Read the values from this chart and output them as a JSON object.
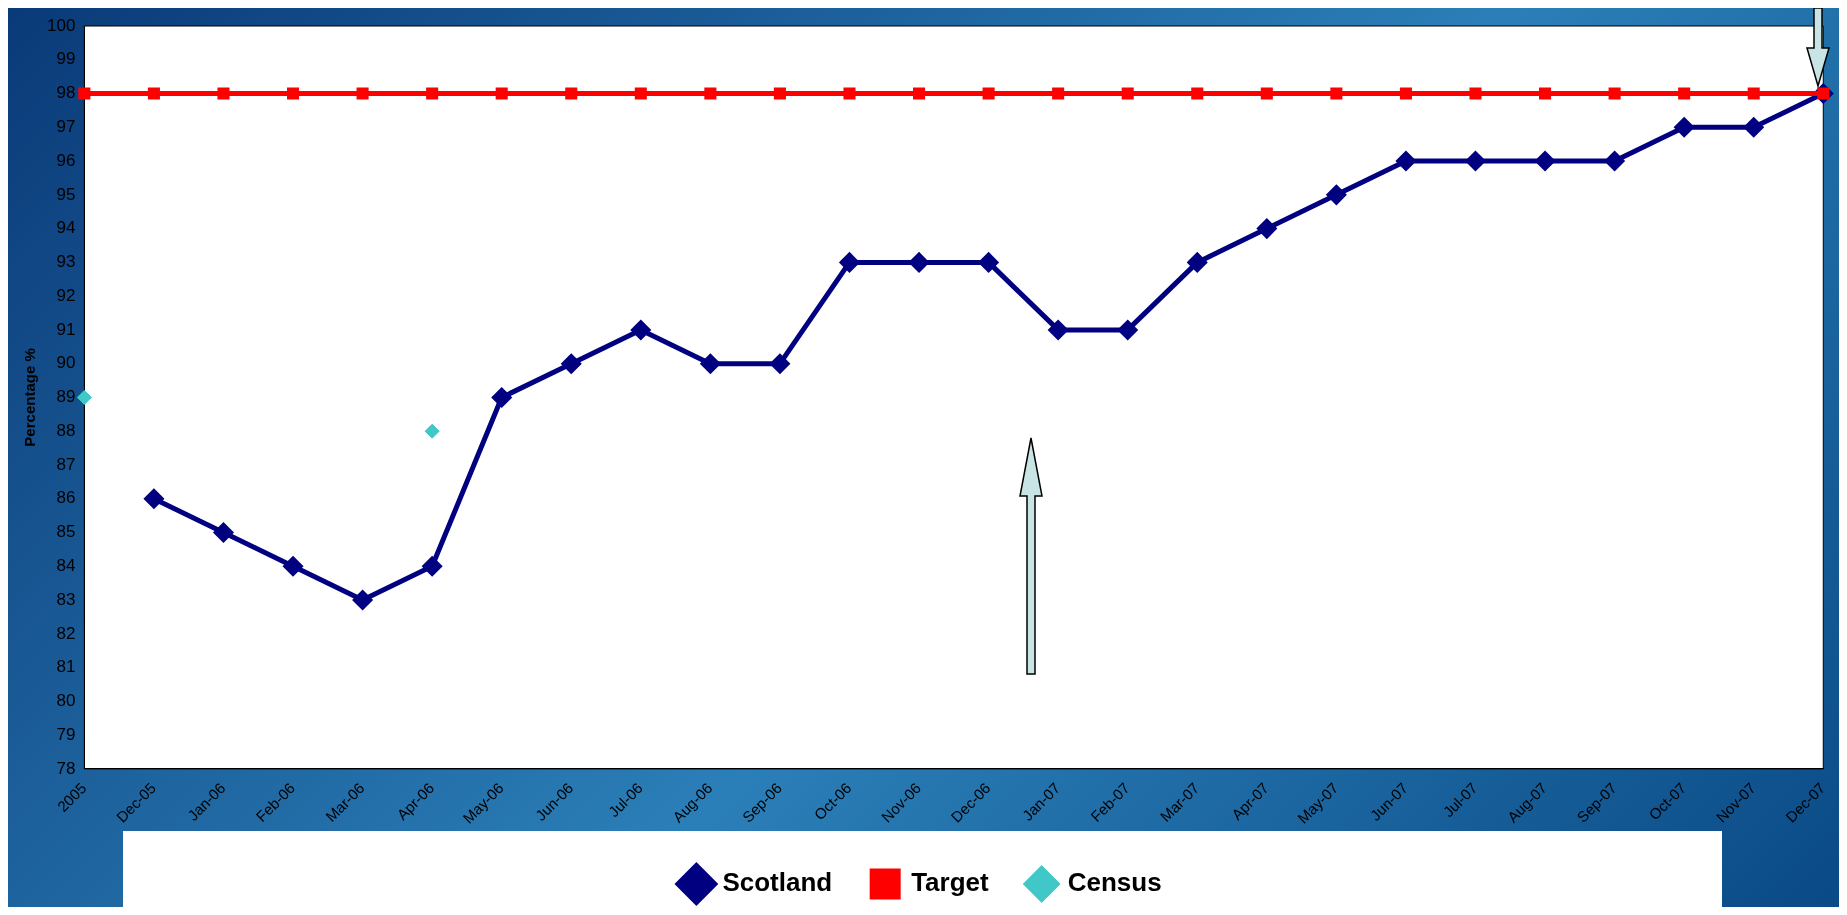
{
  "chart_data": {
    "type": "line",
    "ylabel": "Percentage %",
    "categories": [
      "2005",
      "Dec-05",
      "Jan-06",
      "Feb-06",
      "Mar-06",
      "Apr-06",
      "May-06",
      "Jun-06",
      "Jul-06",
      "Aug-06",
      "Sep-06",
      "Oct-06",
      "Nov-06",
      "Dec-06",
      "Jan-07",
      "Feb-07",
      "Mar-07",
      "Apr-07",
      "May-07",
      "Jun-07",
      "Jul-07",
      "Aug-07",
      "Sep-07",
      "Oct-07",
      "Nov-07",
      "Dec-07"
    ],
    "series": [
      {
        "name": "Scotland",
        "type": "line",
        "color": "#000080",
        "marker": "diamond",
        "values": [
          null,
          86,
          85,
          84,
          83,
          84,
          89,
          90,
          91,
          90,
          90,
          93,
          93,
          93,
          91,
          91,
          93,
          94,
          95,
          96,
          96,
          96,
          96,
          97,
          97,
          98
        ]
      },
      {
        "name": "Target",
        "type": "line",
        "color": "#ff0000",
        "marker": "square",
        "values": [
          98,
          98,
          98,
          98,
          98,
          98,
          98,
          98,
          98,
          98,
          98,
          98,
          98,
          98,
          98,
          98,
          98,
          98,
          98,
          98,
          98,
          98,
          98,
          98,
          98,
          98
        ]
      },
      {
        "name": "Census",
        "type": "scatter",
        "color": "#40c8c8",
        "marker": "diamond",
        "values": [
          89,
          null,
          null,
          null,
          null,
          88,
          null,
          null,
          null,
          null,
          null,
          null,
          null,
          null,
          null,
          null,
          null,
          null,
          null,
          null,
          null,
          null,
          null,
          null,
          null,
          null
        ]
      }
    ],
    "ylim": [
      78,
      100
    ],
    "yticks": [
      78,
      79,
      80,
      81,
      82,
      83,
      84,
      85,
      86,
      87,
      88,
      89,
      90,
      91,
      92,
      93,
      94,
      95,
      96,
      97,
      98,
      99,
      100
    ],
    "grid": false,
    "legend": "bottom"
  }
}
